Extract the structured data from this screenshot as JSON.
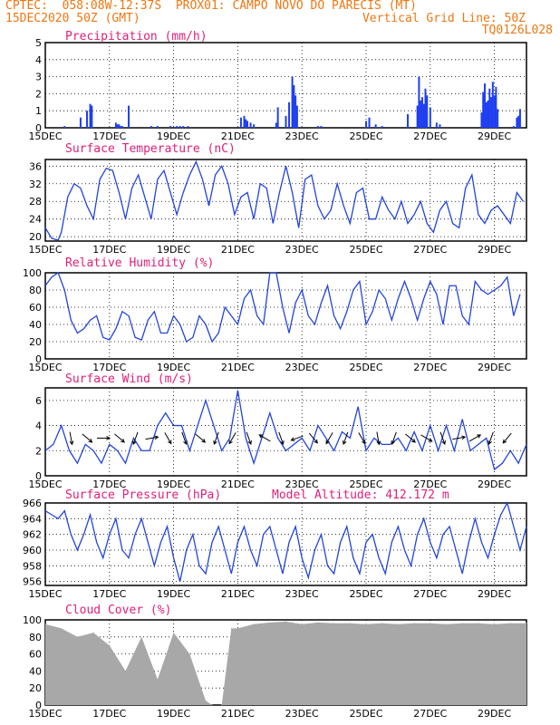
{
  "header": {
    "line1": "CPTEC:  058:08W-12:37S  PROX01: CAMPO NOVO DO PARECIS (MT)",
    "line2_left": "15DEC2020 50Z (GMT)",
    "line2_right": "Vertical Grid Line: 50Z",
    "line3_right": "TQ0126L028"
  },
  "colors": {
    "header": "#ee7711",
    "title": "#e0207a",
    "line": "#2244dd",
    "bar": "#1f3ff0",
    "cloud": "#a8a8a8"
  },
  "x_categories": [
    "15DEC",
    "17DEC",
    "19DEC",
    "21DEC",
    "23DEC",
    "25DEC",
    "27DEC",
    "29DEC"
  ],
  "chart_data": [
    {
      "type": "bar",
      "title": "Precipitation (mm/h)",
      "ylim": [
        0,
        5
      ],
      "yticks": [
        0,
        1,
        2,
        3,
        4,
        5
      ],
      "x": [
        0.6,
        1.1,
        1.3,
        1.4,
        1.45,
        2.2,
        2.25,
        2.3,
        2.35,
        2.4,
        2.6,
        3.3,
        3.5,
        3.9,
        4.1,
        4.2,
        4.3,
        4.45,
        6.1,
        6.2,
        6.25,
        6.3,
        6.4,
        6.5,
        7.2,
        7.25,
        7.5,
        7.6,
        7.7,
        7.75,
        7.8,
        7.85,
        8.5,
        8.6,
        10.0,
        10.1,
        10.3,
        10.5,
        11.3,
        11.6,
        11.65,
        11.7,
        11.75,
        11.8,
        11.85,
        11.9,
        12.0,
        12.2,
        12.3,
        13.6,
        13.65,
        13.7,
        13.75,
        13.8,
        13.85,
        13.9,
        13.95,
        14.0,
        14.05,
        14.1,
        14.6,
        14.7,
        14.75,
        14.8
      ],
      "values": [
        0.1,
        0.6,
        1.0,
        1.4,
        1.3,
        0.3,
        0.2,
        0.2,
        0.1,
        0.1,
        1.3,
        0.1,
        0.1,
        0.1,
        0.1,
        0.1,
        0.1,
        0.1,
        0.6,
        0.7,
        0.5,
        0.4,
        0.3,
        0.2,
        0.3,
        1.2,
        0.7,
        1.5,
        3.0,
        2.5,
        1.9,
        1.3,
        0.1,
        0.1,
        0.4,
        0.6,
        0.2,
        0.1,
        0.8,
        1.3,
        3.0,
        1.6,
        1.8,
        1.4,
        2.3,
        1.9,
        1.2,
        0.3,
        0.2,
        0.9,
        2.1,
        2.6,
        1.5,
        1.6,
        2.3,
        1.8,
        2.7,
        1.9,
        2.4,
        1.1,
        0.1,
        0.6,
        0.7,
        1.1
      ]
    },
    {
      "type": "line",
      "title": "Surface Temperature (nC)",
      "ylim": [
        19,
        37.5
      ],
      "yticks": [
        20,
        24,
        28,
        32,
        36
      ],
      "x": [
        0,
        0.2,
        0.4,
        0.5,
        0.7,
        0.9,
        1.1,
        1.3,
        1.5,
        1.7,
        1.9,
        2.1,
        2.3,
        2.5,
        2.7,
        2.9,
        3.1,
        3.3,
        3.5,
        3.7,
        3.9,
        4.1,
        4.3,
        4.5,
        4.7,
        4.9,
        5.1,
        5.3,
        5.5,
        5.7,
        5.9,
        6.1,
        6.3,
        6.5,
        6.7,
        6.9,
        7.1,
        7.3,
        7.5,
        7.7,
        7.9,
        8.1,
        8.3,
        8.5,
        8.7,
        8.9,
        9.1,
        9.3,
        9.5,
        9.7,
        9.9,
        10.1,
        10.3,
        10.5,
        10.7,
        10.9,
        11.1,
        11.3,
        11.5,
        11.7,
        11.9,
        12.1,
        12.3,
        12.5,
        12.7,
        12.9,
        13.1,
        13.3,
        13.5,
        13.7,
        13.9,
        14.1,
        14.3,
        14.5,
        14.7,
        14.9
      ],
      "values": [
        22,
        19.6,
        19.2,
        21,
        29,
        32,
        31,
        27,
        24,
        33,
        35.5,
        35,
        30,
        24,
        31,
        34,
        29,
        24,
        33,
        35,
        30,
        25,
        30,
        34,
        37,
        33,
        27,
        34,
        36,
        32,
        25,
        29,
        30,
        24,
        32,
        31,
        23,
        30,
        36,
        30,
        22,
        33,
        34,
        27,
        24,
        26,
        32,
        27,
        23,
        30,
        31,
        24,
        24,
        29,
        26,
        24,
        28,
        23,
        25,
        28,
        23,
        21,
        26,
        28,
        23,
        22,
        31,
        34,
        25,
        23,
        26,
        27,
        25,
        23,
        30,
        28
      ]
    },
    {
      "type": "line",
      "title": "Relative Humidity (%)",
      "ylim": [
        0,
        100
      ],
      "yticks": [
        0,
        20,
        40,
        60,
        80,
        100
      ],
      "x": [
        0,
        0.2,
        0.4,
        0.6,
        0.8,
        1.0,
        1.2,
        1.4,
        1.6,
        1.8,
        2.0,
        2.2,
        2.4,
        2.6,
        2.8,
        3.0,
        3.2,
        3.4,
        3.6,
        3.8,
        4.0,
        4.2,
        4.4,
        4.6,
        4.8,
        5.0,
        5.2,
        5.4,
        5.6,
        5.8,
        6.0,
        6.2,
        6.4,
        6.6,
        6.8,
        7.0,
        7.2,
        7.4,
        7.6,
        7.8,
        8.0,
        8.2,
        8.4,
        8.6,
        8.8,
        9.0,
        9.2,
        9.4,
        9.6,
        9.8,
        10.0,
        10.2,
        10.4,
        10.6,
        10.8,
        11.0,
        11.2,
        11.4,
        11.6,
        11.8,
        12.0,
        12.2,
        12.4,
        12.6,
        12.8,
        13.0,
        13.2,
        13.4,
        13.6,
        13.8,
        14.0,
        14.2,
        14.4,
        14.6,
        14.8
      ],
      "values": [
        85,
        95,
        100,
        80,
        45,
        30,
        35,
        45,
        50,
        25,
        22,
        35,
        55,
        50,
        25,
        22,
        45,
        55,
        30,
        30,
        50,
        40,
        20,
        25,
        50,
        40,
        20,
        30,
        60,
        50,
        40,
        70,
        80,
        50,
        40,
        100,
        100,
        60,
        30,
        65,
        80,
        50,
        40,
        65,
        85,
        50,
        35,
        55,
        80,
        90,
        40,
        55,
        80,
        70,
        45,
        70,
        90,
        70,
        45,
        70,
        90,
        75,
        40,
        85,
        85,
        50,
        40,
        90,
        80,
        75,
        80,
        85,
        95,
        50,
        75
      ]
    },
    {
      "type": "line",
      "title": "Surface Wind (m/s)",
      "ylim": [
        0,
        7
      ],
      "yticks": [
        0,
        2,
        4,
        6
      ],
      "x": [
        0,
        0.25,
        0.5,
        0.75,
        1.0,
        1.25,
        1.5,
        1.75,
        2.0,
        2.25,
        2.5,
        2.75,
        3.0,
        3.25,
        3.5,
        3.75,
        4.0,
        4.25,
        4.5,
        4.75,
        5.0,
        5.25,
        5.5,
        5.75,
        6.0,
        6.25,
        6.5,
        6.75,
        7.0,
        7.25,
        7.5,
        7.75,
        8.0,
        8.25,
        8.5,
        8.75,
        9.0,
        9.25,
        9.5,
        9.75,
        10.0,
        10.25,
        10.5,
        10.75,
        11.0,
        11.25,
        11.5,
        11.75,
        12.0,
        12.25,
        12.5,
        12.75,
        13.0,
        13.25,
        13.5,
        13.75,
        14.0,
        14.25,
        14.5,
        14.75,
        15.0
      ],
      "values": [
        2,
        2.5,
        4,
        2,
        1,
        2.5,
        2,
        1,
        2.5,
        2,
        1,
        3,
        2,
        2,
        4,
        5,
        4,
        4,
        2,
        4,
        6,
        4,
        2,
        3,
        6.8,
        3,
        1,
        3,
        5,
        3,
        2,
        2.5,
        3,
        2,
        4,
        3,
        2,
        3.5,
        3,
        5.5,
        2,
        3,
        2.5,
        2.5,
        3,
        2,
        3.5,
        2,
        4,
        2,
        4,
        2,
        4.5,
        2,
        2.5,
        3,
        0.5,
        1,
        2,
        1,
        2.5
      ],
      "arrows_deg": [
        170,
        130,
        90,
        130,
        200,
        80,
        150,
        160,
        130,
        200,
        210,
        160,
        300,
        160,
        250,
        140,
        210,
        200,
        150,
        170,
        200,
        130,
        120,
        160,
        80,
        60,
        200,
        220
      ]
    },
    {
      "type": "line",
      "title": "Surface Pressure (hPa)",
      "annotation": "Model Altitude: 412.172 m",
      "ylim": [
        955.5,
        966
      ],
      "yticks": [
        956,
        958,
        960,
        962,
        964,
        966
      ],
      "x": [
        0,
        0.2,
        0.4,
        0.6,
        0.8,
        1.0,
        1.2,
        1.4,
        1.6,
        1.8,
        2.0,
        2.2,
        2.4,
        2.6,
        2.8,
        3.0,
        3.2,
        3.4,
        3.6,
        3.8,
        4.0,
        4.2,
        4.4,
        4.6,
        4.8,
        5.0,
        5.2,
        5.4,
        5.6,
        5.8,
        6.0,
        6.2,
        6.4,
        6.6,
        6.8,
        7.0,
        7.2,
        7.4,
        7.6,
        7.8,
        8.0,
        8.2,
        8.4,
        8.6,
        8.8,
        9.0,
        9.2,
        9.4,
        9.6,
        9.8,
        10.0,
        10.2,
        10.4,
        10.6,
        10.8,
        11.0,
        11.2,
        11.4,
        11.6,
        11.8,
        12.0,
        12.2,
        12.4,
        12.6,
        12.8,
        13.0,
        13.2,
        13.4,
        13.6,
        13.8,
        14.0,
        14.2,
        14.4,
        14.6,
        14.8,
        15.0
      ],
      "values": [
        965,
        964.5,
        964,
        965,
        962,
        960,
        962,
        964.5,
        961,
        959,
        962,
        964,
        960,
        959,
        962,
        964,
        961,
        958,
        961,
        963,
        959,
        956,
        960,
        962,
        958,
        957,
        961,
        963,
        960,
        957,
        961,
        963,
        960,
        958,
        962,
        963,
        960,
        957,
        961,
        963,
        959,
        956.5,
        960,
        962,
        958,
        957,
        961,
        963,
        959,
        957,
        961,
        962,
        959,
        957,
        961,
        963,
        960,
        958,
        962,
        964,
        961,
        959,
        962,
        963,
        960,
        957,
        961,
        964,
        961,
        959,
        962,
        964.5,
        966,
        963,
        960,
        963
      ]
    },
    {
      "type": "area",
      "title": "Cloud Cover (%)",
      "ylim": [
        0,
        100
      ],
      "yticks": [
        0,
        20,
        40,
        60,
        80,
        100
      ],
      "x": [
        0,
        0.5,
        1.0,
        1.5,
        2.0,
        2.5,
        3.0,
        3.5,
        4.0,
        4.5,
        5.0,
        5.2,
        5.5,
        5.8,
        6.0,
        6.5,
        7.0,
        7.5,
        8.0,
        8.5,
        9.0,
        9.5,
        10.0,
        10.5,
        11.0,
        11.5,
        12.0,
        12.5,
        13.0,
        13.5,
        14.0,
        14.5,
        15.0
      ],
      "values": [
        95,
        90,
        80,
        85,
        70,
        40,
        80,
        30,
        85,
        60,
        5,
        0,
        0,
        90,
        90,
        95,
        97,
        98,
        95,
        97,
        96,
        96,
        95,
        96,
        95,
        96,
        96,
        95,
        96,
        96,
        95,
        96,
        96
      ]
    }
  ]
}
